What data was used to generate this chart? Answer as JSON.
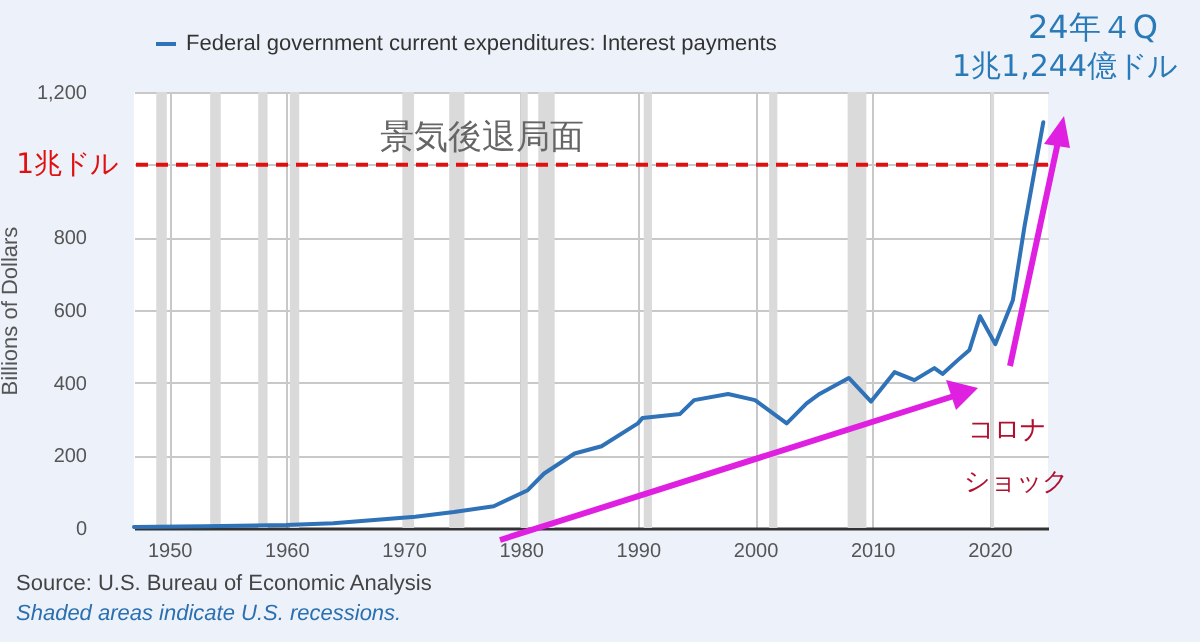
{
  "chart_data": {
    "type": "line",
    "ylabel": "Billions of Dollars",
    "annotations": [
      "景気後退局面",
      "24年４Q",
      "1兆1,244億ドル",
      "コロナ",
      "ショック",
      "Source: U.S. Bureau of Economic Analysis",
      "Shaded areas indicate U.S. recessions."
    ],
    "series": [
      {
        "name": "Federal government current expenditures: Interest payments",
        "color": "#2f72b8",
        "x": [
          1947,
          1953,
          1960,
          1964,
          1971,
          1974.3,
          1977.7,
          1980.6,
          1982,
          1984.6,
          1986.9,
          1990,
          1990.4,
          1993.6,
          1994.8,
          1997.7,
          2000,
          2002.7,
          2004.4,
          2005.5,
          2008,
          2009.9,
          2011.9,
          2013.6,
          2015.3,
          2016,
          2017.3,
          2018.3,
          2019.2,
          2020.5,
          2022,
          2023,
          2024.6
        ],
        "values": [
          3,
          5,
          8,
          13,
          31,
          44,
          60,
          104,
          150,
          205,
          225,
          288,
          303,
          314,
          352,
          369,
          352,
          288,
          343,
          369,
          413,
          348,
          429,
          407,
          440,
          424,
          462,
          490,
          583,
          506,
          627,
          831,
          1117
        ]
      }
    ],
    "xlim": [
      1947,
      2025
    ],
    "xticks": [
      1950,
      1960,
      1970,
      1980,
      1990,
      2000,
      2010,
      2020
    ],
    "ylim": [
      0,
      1200
    ],
    "yticks": [
      0,
      200,
      400,
      600,
      800,
      {
        "value": 1000,
        "label": null
      },
      {
        "value": 1200,
        "label": "1,200"
      }
    ],
    "grid": true,
    "legend": "top left",
    "ref_lines": [
      {
        "axis": "y",
        "value": 1000,
        "label": "1兆ドル",
        "color": "#e01010",
        "line_style": "dashed"
      }
    ],
    "bands": [
      {
        "axis": "x",
        "from": 1948.9,
        "to": 1949.8,
        "color": "#dadada"
      },
      {
        "axis": "x",
        "from": 1953.5,
        "to": 1954.4,
        "color": "#dadada"
      },
      {
        "axis": "x",
        "from": 1957.6,
        "to": 1958.4,
        "color": "#dadada"
      },
      {
        "axis": "x",
        "from": 1960.3,
        "to": 1961.1,
        "color": "#dadada"
      },
      {
        "axis": "x",
        "from": 1969.9,
        "to": 1970.9,
        "color": "#dadada"
      },
      {
        "axis": "x",
        "from": 1973.9,
        "to": 1975.2,
        "color": "#dadada"
      },
      {
        "axis": "x",
        "from": 1980.0,
        "to": 1980.6,
        "color": "#dadada"
      },
      {
        "axis": "x",
        "from": 1981.5,
        "to": 1982.9,
        "color": "#dadada"
      },
      {
        "axis": "x",
        "from": 1990.5,
        "to": 1991.2,
        "color": "#dadada"
      },
      {
        "axis": "x",
        "from": 2001.2,
        "to": 2001.9,
        "color": "#dadada"
      },
      {
        "axis": "x",
        "from": 2007.9,
        "to": 2009.5,
        "color": "#dadada"
      },
      {
        "axis": "x",
        "from": 2020.1,
        "to": 2020.4,
        "color": "#dadada"
      }
    ]
  }
}
